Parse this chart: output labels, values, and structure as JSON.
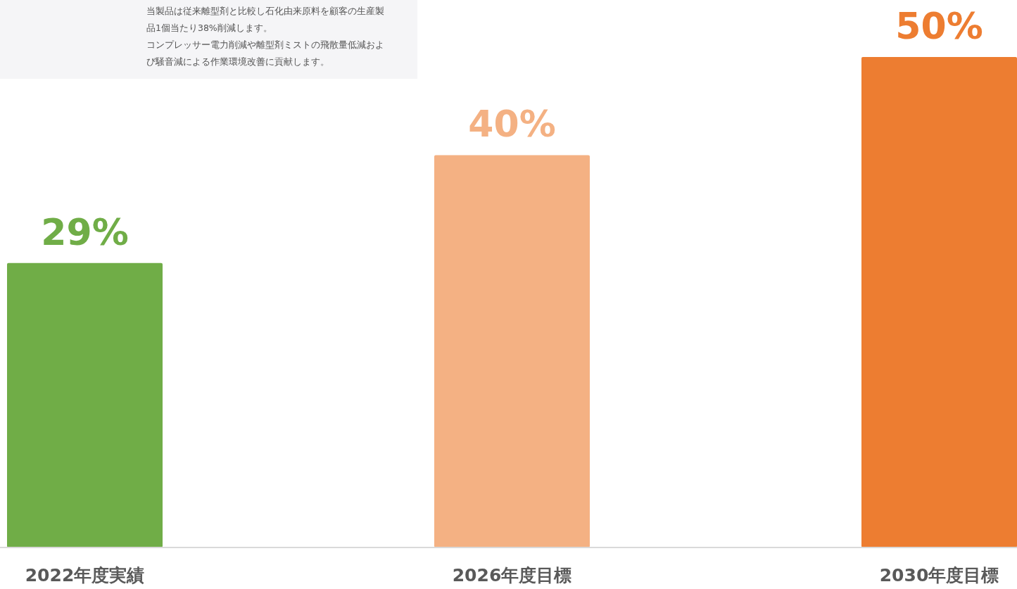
{
  "chart_data": {
    "type": "bar",
    "categories": [
      "2022年度実績",
      "2026年度目標",
      "2030年度目標"
    ],
    "values": [
      29,
      40,
      50
    ],
    "colors": [
      "#70ad47",
      "#f4b183",
      "#ed7d31"
    ],
    "value_labels": [
      "29%",
      "40%",
      "50%"
    ],
    "annotations": [
      "当製品は従来離型剤と比較し石化由来原料を顧客の生産製",
      "品1個当たり38%削減します。",
      "コンプレッサー電力削減や離型剤ミストの飛散量低減およ",
      "び騒音減による作業環境改善に貢献します。"
    ]
  }
}
